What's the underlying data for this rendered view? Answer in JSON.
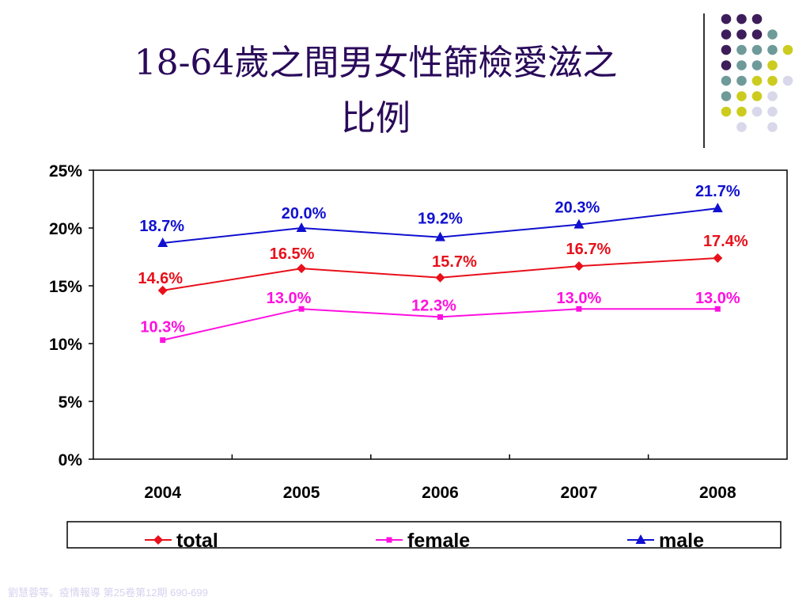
{
  "slide": {
    "title_line1": "18-64歲之間男女性篩檢愛滋之",
    "title_line2": "比例",
    "footer": "劉慧蓉等。疫情報導 第25卷第12期 690-699"
  },
  "colors": {
    "title": "#2a0a5a",
    "total": "#e8101a",
    "female": "#ff10e0",
    "male": "#1010d0",
    "dot_purple": "#3d1d5a",
    "dot_teal": "#6f9a9a",
    "dot_yellow": "#cccc20",
    "dot_lavender": "#d8d8ea"
  },
  "decoration": {
    "dot_grid": [
      [
        "purple",
        "purple",
        "purple",
        "",
        "",
        ""
      ],
      [
        "purple",
        "purple",
        "purple",
        "teal",
        "",
        ""
      ],
      [
        "purple",
        "teal",
        "teal",
        "teal",
        "yellow",
        ""
      ],
      [
        "purple",
        "teal",
        "teal",
        "yellow",
        "",
        ""
      ],
      [
        "teal",
        "teal",
        "yellow",
        "yellow",
        "lavender",
        ""
      ],
      [
        "teal",
        "yellow",
        "yellow",
        "lavender",
        "",
        ""
      ],
      [
        "yellow",
        "yellow",
        "lavender",
        "lavender",
        "",
        ""
      ],
      [
        "",
        "lavender",
        "",
        "lavender",
        "",
        ""
      ]
    ]
  },
  "chart_data": {
    "type": "line",
    "categories": [
      "2004",
      "2005",
      "2006",
      "2007",
      "2008"
    ],
    "ylim": [
      0,
      25
    ],
    "yticks": [
      "0%",
      "5%",
      "10%",
      "15%",
      "20%",
      "25%"
    ],
    "grid": false,
    "legend_position": "bottom",
    "series": [
      {
        "name": "total",
        "key": "total",
        "marker": "diamond",
        "values": [
          14.6,
          16.5,
          15.7,
          16.7,
          17.4
        ],
        "labels": [
          "14.6%",
          "16.5%",
          "15.7%",
          "16.7%",
          "17.4%"
        ]
      },
      {
        "name": "female",
        "key": "female",
        "marker": "square",
        "values": [
          10.3,
          13.0,
          12.3,
          13.0,
          13.0
        ],
        "labels": [
          "10.3%",
          "13.0%",
          "12.3%",
          "13.0%",
          "13.0%"
        ]
      },
      {
        "name": "male",
        "key": "male",
        "marker": "triangle",
        "values": [
          18.7,
          20.0,
          19.2,
          20.3,
          21.7
        ],
        "labels": [
          "18.7%",
          "20.0%",
          "19.2%",
          "20.3%",
          "21.7%"
        ]
      }
    ]
  }
}
